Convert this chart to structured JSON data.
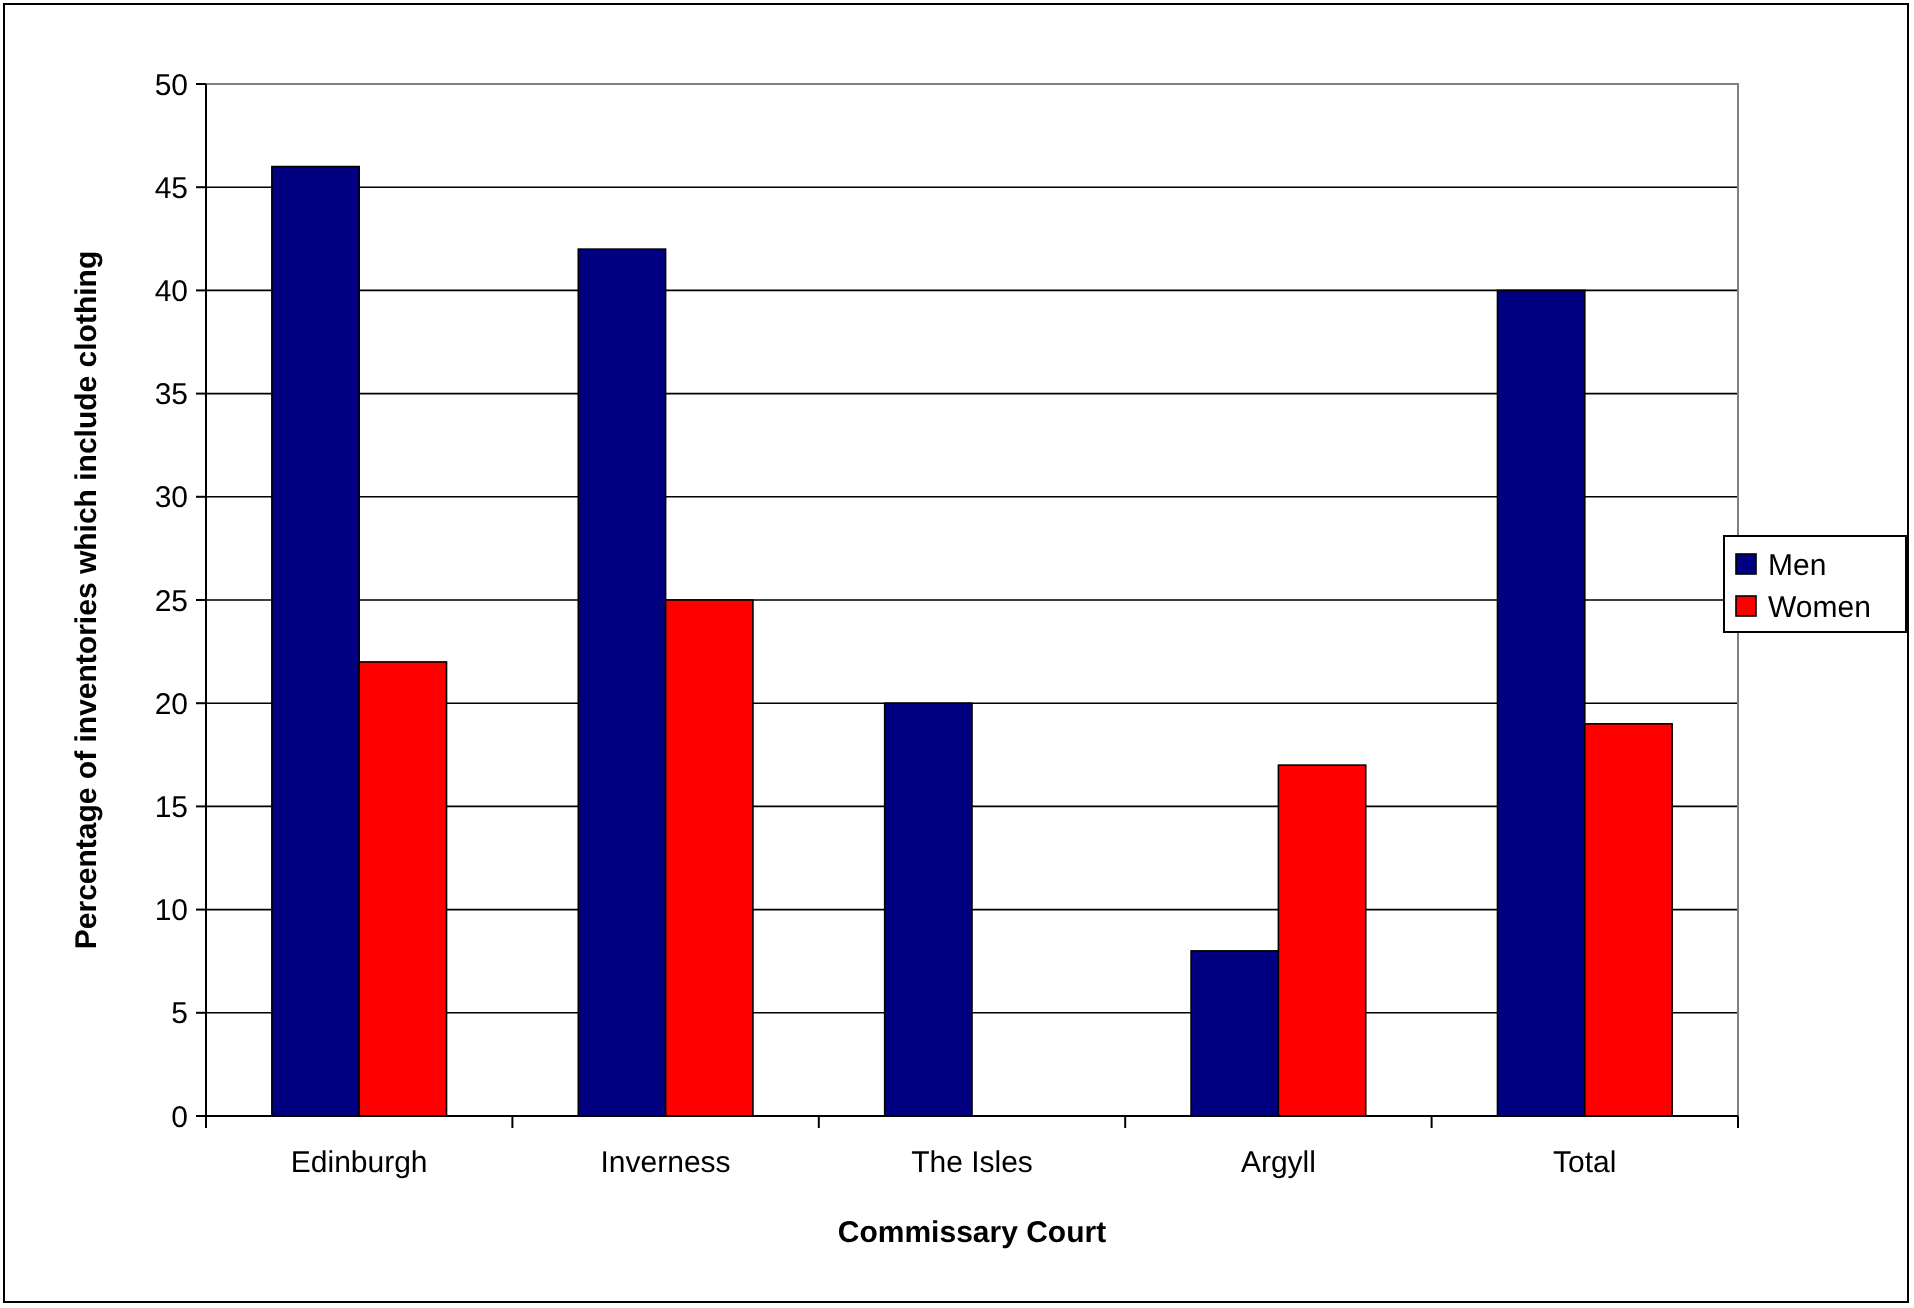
{
  "chart_data": {
    "type": "bar",
    "xlabel": "Commissary Court",
    "ylabel": "Percentage of inventories which include clothing",
    "categories": [
      "Edinburgh",
      "Inverness",
      "The Isles",
      "Argyll",
      "Total"
    ],
    "series": [
      {
        "name": "Men",
        "color": "#000080",
        "values": [
          46,
          42,
          20,
          8,
          40
        ]
      },
      {
        "name": "Women",
        "color": "#ff0000",
        "values": [
          22,
          25,
          0,
          17,
          19
        ]
      }
    ],
    "ylim": [
      0,
      50
    ],
    "yticks": [
      0,
      5,
      10,
      15,
      20,
      25,
      30,
      35,
      40,
      45,
      50
    ],
    "grid": "y",
    "legend": "right"
  }
}
